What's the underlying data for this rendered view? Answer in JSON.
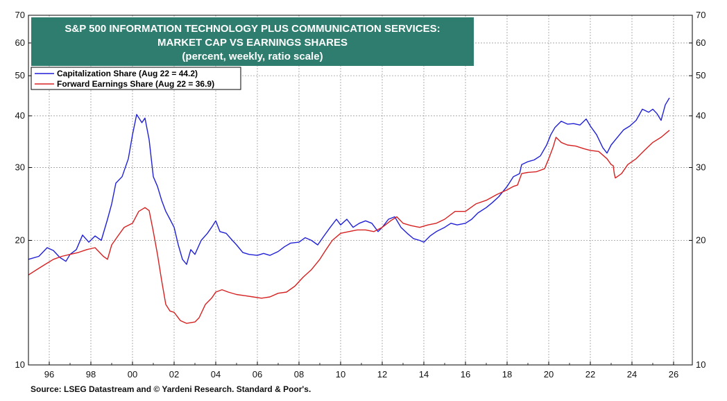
{
  "chart_data": {
    "type": "line",
    "title_lines": [
      "S&P 500 INFORMATION TECHNOLOGY PLUS COMMUNICATION SERVICES:",
      "MARKET CAP VS EARNINGS SHARES",
      "(percent, weekly, ratio scale)"
    ],
    "title_bg_color": "#2e7d6e",
    "y_scale": "log",
    "ylim": [
      10,
      70
    ],
    "y_ticks": [
      10,
      20,
      30,
      40,
      50,
      60,
      70
    ],
    "xlim": [
      1995,
      2026.9
    ],
    "x_ticks": [
      {
        "x": 1996,
        "label": "96"
      },
      {
        "x": 1998,
        "label": "98"
      },
      {
        "x": 2000,
        "label": "00"
      },
      {
        "x": 2002,
        "label": "02"
      },
      {
        "x": 2004,
        "label": "04"
      },
      {
        "x": 2006,
        "label": "06"
      },
      {
        "x": 2008,
        "label": "08"
      },
      {
        "x": 2010,
        "label": "10"
      },
      {
        "x": 2012,
        "label": "12"
      },
      {
        "x": 2014,
        "label": "14"
      },
      {
        "x": 2016,
        "label": "16"
      },
      {
        "x": 2018,
        "label": "18"
      },
      {
        "x": 2020,
        "label": "20"
      },
      {
        "x": 2022,
        "label": "22"
      },
      {
        "x": 2024,
        "label": "24"
      },
      {
        "x": 2026,
        "label": "26"
      }
    ],
    "grid": true,
    "legend_position": "top-left",
    "series": [
      {
        "name": "Capitalization Share  (Aug 22 = 44.2)",
        "color": "#1f1fd6",
        "points": [
          [
            1995.0,
            18.0
          ],
          [
            1995.5,
            18.3
          ],
          [
            1995.9,
            19.2
          ],
          [
            1996.2,
            18.9
          ],
          [
            1996.5,
            18.2
          ],
          [
            1996.8,
            17.8
          ],
          [
            1997.0,
            18.5
          ],
          [
            1997.3,
            19.0
          ],
          [
            1997.6,
            20.6
          ],
          [
            1997.9,
            19.8
          ],
          [
            1998.2,
            20.5
          ],
          [
            1998.5,
            20.0
          ],
          [
            1998.8,
            22.5
          ],
          [
            1999.0,
            24.5
          ],
          [
            1999.2,
            27.5
          ],
          [
            1999.5,
            28.5
          ],
          [
            1999.8,
            31.5
          ],
          [
            2000.0,
            36.0
          ],
          [
            2000.2,
            40.3
          ],
          [
            2000.45,
            38.5
          ],
          [
            2000.6,
            39.5
          ],
          [
            2000.8,
            35.0
          ],
          [
            2001.0,
            28.5
          ],
          [
            2001.2,
            27.0
          ],
          [
            2001.4,
            25.0
          ],
          [
            2001.6,
            23.5
          ],
          [
            2001.8,
            22.5
          ],
          [
            2002.0,
            21.5
          ],
          [
            2002.2,
            19.5
          ],
          [
            2002.4,
            18.0
          ],
          [
            2002.6,
            17.5
          ],
          [
            2002.8,
            19.0
          ],
          [
            2003.0,
            18.5
          ],
          [
            2003.3,
            20.0
          ],
          [
            2003.6,
            20.8
          ],
          [
            2003.8,
            21.5
          ],
          [
            2004.0,
            22.3
          ],
          [
            2004.2,
            21.0
          ],
          [
            2004.5,
            20.8
          ],
          [
            2004.8,
            20.0
          ],
          [
            2005.0,
            19.5
          ],
          [
            2005.3,
            18.7
          ],
          [
            2005.6,
            18.5
          ],
          [
            2006.0,
            18.4
          ],
          [
            2006.3,
            18.6
          ],
          [
            2006.6,
            18.4
          ],
          [
            2007.0,
            18.8
          ],
          [
            2007.3,
            19.3
          ],
          [
            2007.6,
            19.7
          ],
          [
            2008.0,
            19.8
          ],
          [
            2008.3,
            20.3
          ],
          [
            2008.6,
            20.0
          ],
          [
            2008.9,
            19.5
          ],
          [
            2009.2,
            20.5
          ],
          [
            2009.5,
            21.5
          ],
          [
            2009.8,
            22.5
          ],
          [
            2010.0,
            21.8
          ],
          [
            2010.3,
            22.5
          ],
          [
            2010.6,
            21.5
          ],
          [
            2010.9,
            22.0
          ],
          [
            2011.2,
            22.3
          ],
          [
            2011.5,
            22.0
          ],
          [
            2011.8,
            21.0
          ],
          [
            2012.0,
            21.5
          ],
          [
            2012.3,
            22.5
          ],
          [
            2012.6,
            22.8
          ],
          [
            2012.9,
            21.5
          ],
          [
            2013.2,
            20.8
          ],
          [
            2013.5,
            20.2
          ],
          [
            2013.8,
            20.0
          ],
          [
            2014.0,
            19.8
          ],
          [
            2014.3,
            20.5
          ],
          [
            2014.6,
            21.0
          ],
          [
            2015.0,
            21.5
          ],
          [
            2015.3,
            22.0
          ],
          [
            2015.6,
            21.8
          ],
          [
            2016.0,
            22.0
          ],
          [
            2016.3,
            22.5
          ],
          [
            2016.6,
            23.3
          ],
          [
            2017.0,
            24.0
          ],
          [
            2017.3,
            24.7
          ],
          [
            2017.6,
            25.5
          ],
          [
            2018.0,
            27.0
          ],
          [
            2018.3,
            28.5
          ],
          [
            2018.6,
            29.0
          ],
          [
            2018.7,
            30.5
          ],
          [
            2019.0,
            31.0
          ],
          [
            2019.3,
            31.3
          ],
          [
            2019.6,
            32.0
          ],
          [
            2019.9,
            34.0
          ],
          [
            2020.1,
            36.0
          ],
          [
            2020.3,
            37.5
          ],
          [
            2020.6,
            38.8
          ],
          [
            2020.9,
            38.2
          ],
          [
            2021.2,
            38.3
          ],
          [
            2021.5,
            38.0
          ],
          [
            2021.8,
            39.3
          ],
          [
            2022.0,
            37.8
          ],
          [
            2022.3,
            36.0
          ],
          [
            2022.6,
            33.5
          ],
          [
            2022.8,
            32.5
          ],
          [
            2023.0,
            34.0
          ],
          [
            2023.3,
            35.5
          ],
          [
            2023.6,
            37.0
          ],
          [
            2023.9,
            37.8
          ],
          [
            2024.2,
            39.0
          ],
          [
            2024.5,
            41.5
          ],
          [
            2024.8,
            40.8
          ],
          [
            2025.0,
            41.5
          ],
          [
            2025.2,
            40.5
          ],
          [
            2025.4,
            39.0
          ],
          [
            2025.6,
            42.5
          ],
          [
            2025.8,
            44.2
          ]
        ]
      },
      {
        "name": "Forward Earnings Share (Aug 22 = 36.9)",
        "color": "#d62020",
        "points": [
          [
            1995.0,
            16.5
          ],
          [
            1995.4,
            17.0
          ],
          [
            1995.8,
            17.5
          ],
          [
            1996.2,
            18.0
          ],
          [
            1996.6,
            18.3
          ],
          [
            1997.0,
            18.5
          ],
          [
            1997.4,
            18.7
          ],
          [
            1997.8,
            19.0
          ],
          [
            1998.2,
            19.2
          ],
          [
            1998.6,
            18.3
          ],
          [
            1998.8,
            18.0
          ],
          [
            1999.0,
            19.5
          ],
          [
            1999.3,
            20.5
          ],
          [
            1999.6,
            21.5
          ],
          [
            2000.0,
            22.0
          ],
          [
            2000.3,
            23.5
          ],
          [
            2000.6,
            24.0
          ],
          [
            2000.8,
            23.6
          ],
          [
            2001.0,
            21.0
          ],
          [
            2001.2,
            18.5
          ],
          [
            2001.4,
            16.0
          ],
          [
            2001.6,
            14.0
          ],
          [
            2001.8,
            13.5
          ],
          [
            2002.0,
            13.4
          ],
          [
            2002.3,
            12.8
          ],
          [
            2002.6,
            12.6
          ],
          [
            2003.0,
            12.7
          ],
          [
            2003.2,
            13.0
          ],
          [
            2003.5,
            14.0
          ],
          [
            2003.8,
            14.5
          ],
          [
            2004.0,
            15.0
          ],
          [
            2004.3,
            15.2
          ],
          [
            2004.6,
            15.0
          ],
          [
            2005.0,
            14.8
          ],
          [
            2005.4,
            14.7
          ],
          [
            2005.8,
            14.6
          ],
          [
            2006.2,
            14.5
          ],
          [
            2006.6,
            14.6
          ],
          [
            2007.0,
            14.9
          ],
          [
            2007.4,
            15.0
          ],
          [
            2007.8,
            15.5
          ],
          [
            2008.2,
            16.3
          ],
          [
            2008.6,
            17.0
          ],
          [
            2009.0,
            18.0
          ],
          [
            2009.3,
            19.0
          ],
          [
            2009.6,
            20.0
          ],
          [
            2010.0,
            20.8
          ],
          [
            2010.4,
            21.0
          ],
          [
            2010.8,
            21.2
          ],
          [
            2011.2,
            21.2
          ],
          [
            2011.6,
            21.0
          ],
          [
            2012.0,
            21.5
          ],
          [
            2012.4,
            22.3
          ],
          [
            2012.7,
            22.8
          ],
          [
            2013.0,
            22.0
          ],
          [
            2013.4,
            21.7
          ],
          [
            2013.8,
            21.5
          ],
          [
            2014.2,
            21.8
          ],
          [
            2014.6,
            22.0
          ],
          [
            2015.0,
            22.5
          ],
          [
            2015.5,
            23.5
          ],
          [
            2016.0,
            23.5
          ],
          [
            2016.5,
            24.5
          ],
          [
            2017.0,
            25.0
          ],
          [
            2017.5,
            25.8
          ],
          [
            2018.0,
            26.5
          ],
          [
            2018.3,
            27.0
          ],
          [
            2018.5,
            27.2
          ],
          [
            2018.7,
            29.0
          ],
          [
            2019.0,
            29.2
          ],
          [
            2019.4,
            29.3
          ],
          [
            2019.8,
            29.8
          ],
          [
            2020.0,
            31.5
          ],
          [
            2020.2,
            33.5
          ],
          [
            2020.35,
            35.5
          ],
          [
            2020.6,
            34.5
          ],
          [
            2020.9,
            34.0
          ],
          [
            2021.3,
            33.8
          ],
          [
            2021.7,
            33.3
          ],
          [
            2022.0,
            33.0
          ],
          [
            2022.4,
            32.8
          ],
          [
            2022.8,
            31.5
          ],
          [
            2023.0,
            30.5
          ],
          [
            2023.1,
            30.3
          ],
          [
            2023.15,
            29.0
          ],
          [
            2023.2,
            28.3
          ],
          [
            2023.5,
            29.0
          ],
          [
            2023.8,
            30.5
          ],
          [
            2024.2,
            31.5
          ],
          [
            2024.6,
            33.0
          ],
          [
            2025.0,
            34.5
          ],
          [
            2025.4,
            35.5
          ],
          [
            2025.8,
            36.9
          ]
        ]
      }
    ]
  },
  "source": "Source: LSEG Datastream and © Yardeni Research. Standard & Poor's."
}
